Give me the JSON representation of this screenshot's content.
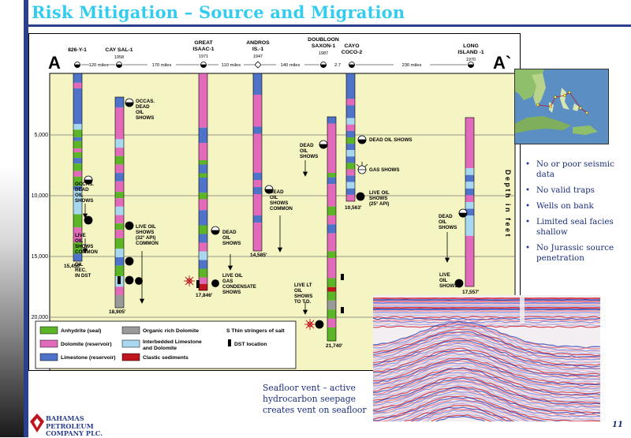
{
  "slide": {
    "title": "Risk Mitigation – Source and Migration",
    "page_number": "11"
  },
  "section": {
    "start_label": "A",
    "end_label": "A`",
    "depth_axis_label": "Depth in feet",
    "depth_ticks": [
      "5,000",
      "10,000",
      "15,000",
      "20,000"
    ],
    "spacings": [
      "120 miles",
      "170 miles",
      "110 miles",
      "140 miles",
      "2.7",
      "230 miles"
    ]
  },
  "wells": [
    {
      "name_line1": "826-Y-1",
      "name_line2": "",
      "year": "",
      "td": "15,450'"
    },
    {
      "name_line1": "CAY SAL-1",
      "name_line2": "",
      "year": "1958",
      "td": "18,905'"
    },
    {
      "name_line1": "GREAT",
      "name_line2": "ISAAC-1",
      "year": "1971",
      "td": "17,846'"
    },
    {
      "name_line1": "ANDROS",
      "name_line2": "IS.-1",
      "year": "1947",
      "td": "14,585'"
    },
    {
      "name_line1": "DOUBLOON",
      "name_line2": "SAXON-1",
      "year": "1987",
      "td": "21,740'"
    },
    {
      "name_line1": "CAYO",
      "name_line2": "COCO-2",
      "year": "",
      "td": "10,563'"
    },
    {
      "name_line1": "LONG",
      "name_line2": "ISLAND -1",
      "year": "1970",
      "td": "17,557'"
    }
  ],
  "annotations": {
    "w1_shows": [
      "OCCAS.",
      "DEAD",
      "OIL",
      "SHOWS"
    ],
    "w1_live": [
      "LIVE",
      "OIL",
      "SHOWS",
      "COMMON"
    ],
    "w1_rec": [
      "OIL",
      "REC.",
      "IN DST"
    ],
    "w2_occas": [
      "OCCAS.",
      "DEAD",
      "OIL",
      "SHOWS"
    ],
    "w2_live": [
      "LIVE OIL",
      "SHOWS",
      "(32° API)",
      "COMMON"
    ],
    "w3_dead": [
      "DEAD",
      "OIL",
      "SHOWS"
    ],
    "w3_gas": [
      "LIVE OIL",
      "GAS",
      "CONDENSATE",
      "SHOWS"
    ],
    "w4_dead": [
      "DEAD",
      "OIL",
      "SHOWS",
      "COMMON"
    ],
    "w5_dead": [
      "DEAD",
      "OIL",
      "SHOWS"
    ],
    "w5_live": [
      "LIVE LT",
      "OIL",
      "SHOWS",
      "TO T.D."
    ],
    "w6_dead": "DEAD OIL SHOWS",
    "w6_gas": "GAS SHOWS",
    "w6_live": [
      "LIVE OIL",
      "SHOWS",
      "(25° API)"
    ],
    "w7_dead": [
      "DEAD",
      "OIL",
      "SHOWS"
    ],
    "w7_live": [
      "LIVE",
      "OIL",
      "SHOWS"
    ]
  },
  "legend": {
    "anhydrite": "Anhydrite (seal)",
    "dolomite": "Dolomite (reservoir)",
    "limestone": "Limestone (reservoir)",
    "organic": "Organic rich Dolomite",
    "interbedded_l1": "Interbedded Limestone",
    "interbedded_l2": "and Dolomite",
    "clastic": "Clastic sediments",
    "salt": "S  Thin stringers of salt",
    "dst": "DST location"
  },
  "colors": {
    "title": "#33ccee",
    "section_bg": "#f5f5c4",
    "anhydrite": "#5bb526",
    "dolomite": "#e16aba",
    "limestone": "#4f73c9",
    "interbedded": "#a8d8f0",
    "organic": "#9a9a9a",
    "clastic": "#c0141e",
    "bullet_text": "#1a2f7a"
  },
  "bullets": [
    "No or poor seismic data",
    "No valid traps",
    "Wells on bank",
    "Limited seal facies shallow",
    "No Jurassic source penetration"
  ],
  "caption": "Seafloor vent – active hydrocarbon seepage creates vent on seafloor",
  "logo": {
    "line1": "Bahamas",
    "line2": "Petroleum",
    "line3": "Company plc."
  }
}
